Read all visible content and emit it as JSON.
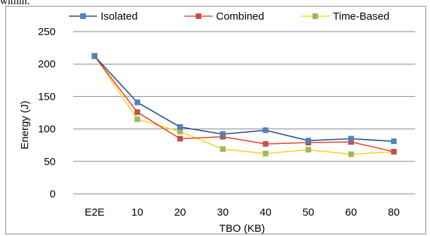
{
  "fragment_text": "within.",
  "chart_data": {
    "type": "line",
    "title": "",
    "xlabel": "TBO (KB)",
    "ylabel": "Energy (J)",
    "categories": [
      "E2E",
      "10",
      "20",
      "30",
      "40",
      "50",
      "60",
      "80"
    ],
    "ylim": [
      0,
      250
    ],
    "yticks": [
      0,
      50,
      100,
      150,
      200,
      250
    ],
    "grid": "horizontal",
    "legend": "top",
    "series": [
      {
        "name": "Isolated",
        "color": "#1f4e8c",
        "marker_color": "#4f81bd",
        "values": [
          212,
          141,
          103,
          92,
          98,
          82,
          85,
          81
        ]
      },
      {
        "name": "Combined",
        "color": "#e8442a",
        "marker_color": "#c0504d",
        "values": [
          212,
          126,
          85,
          88,
          77,
          79,
          80,
          65
        ]
      },
      {
        "name": "Time-Based",
        "color": "#ffd21f",
        "marker_color": "#9bbb59",
        "values": [
          213,
          115,
          96,
          69,
          62,
          68,
          61,
          65
        ]
      }
    ]
  }
}
